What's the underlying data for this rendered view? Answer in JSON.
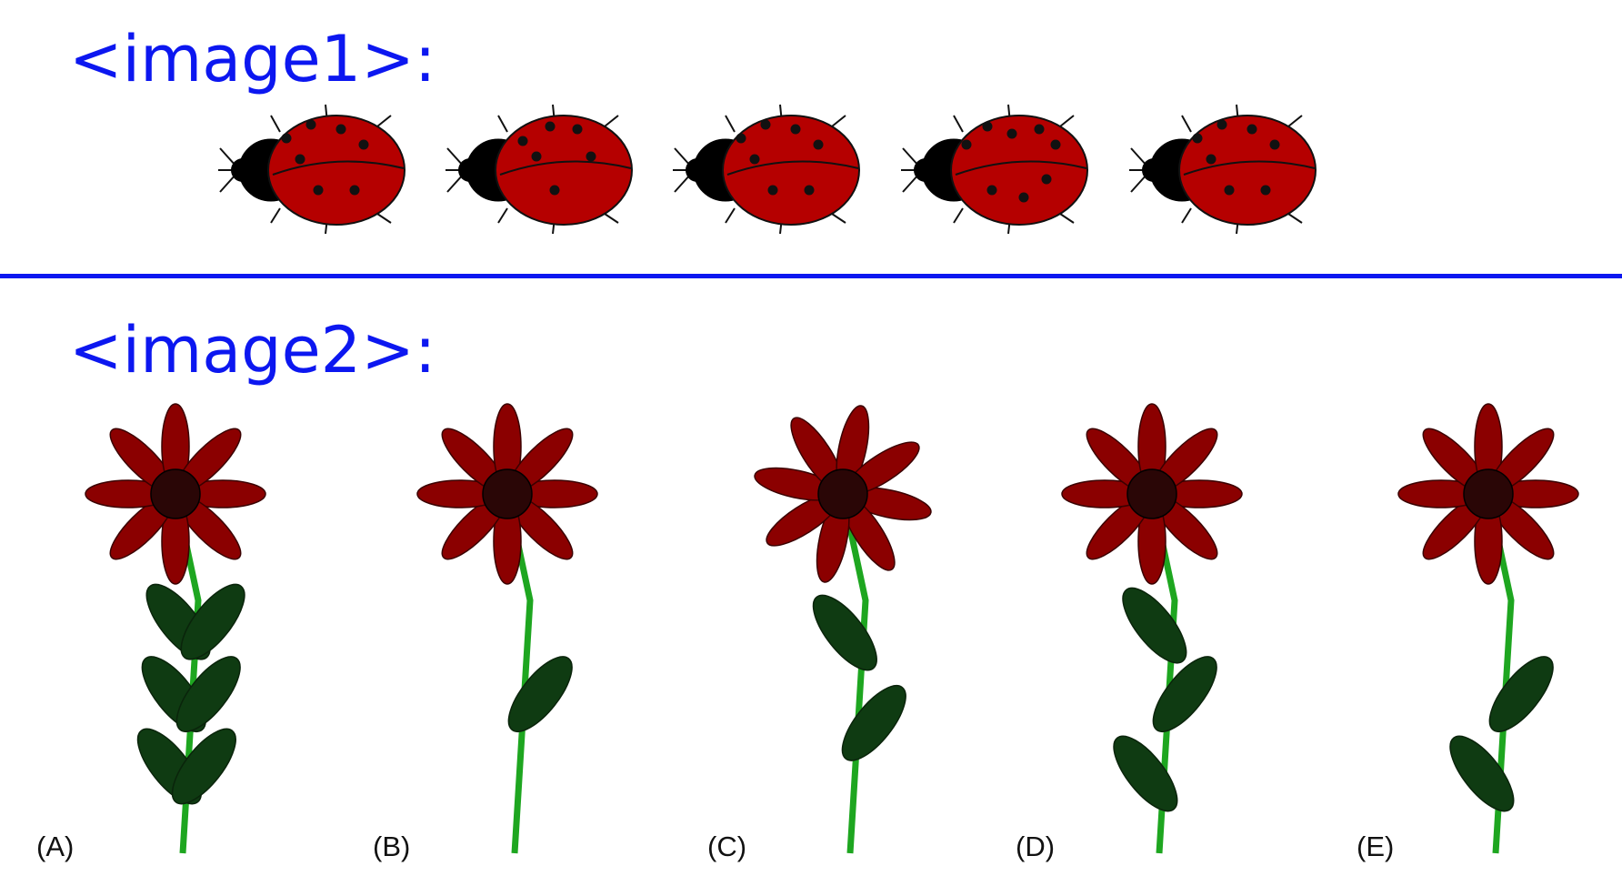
{
  "sections": {
    "image1_label": "<image1>:",
    "image2_label": "<image2>:"
  },
  "colors": {
    "heading": "#0c17f0",
    "ladybug_shell": "#b50000",
    "petal": "#8b0000",
    "flower_center": "#2a0606",
    "stem": "#1ea620",
    "leaf": "#0f3b12"
  },
  "ladybugs": [
    {
      "spots": 7
    },
    {
      "spots": 6
    },
    {
      "spots": 7
    },
    {
      "spots": 8
    },
    {
      "spots": 7
    }
  ],
  "options": [
    {
      "label": "(A)",
      "leaves": 6,
      "petals": 8
    },
    {
      "label": "(B)",
      "leaves": 1,
      "petals": 8
    },
    {
      "label": "(C)",
      "leaves": 2,
      "petals": 8
    },
    {
      "label": "(D)",
      "leaves": 3,
      "petals": 8
    },
    {
      "label": "(E)",
      "leaves": 2,
      "petals": 8
    }
  ]
}
